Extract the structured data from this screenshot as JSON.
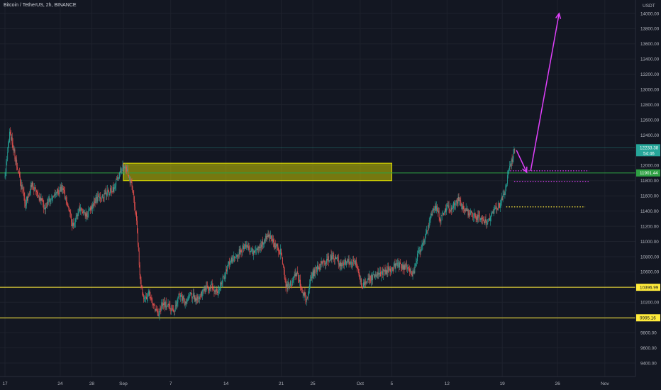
{
  "title": "Bitcoin / TetherUS, 2h, BINANCE",
  "chart_data": {
    "type": "candlestick",
    "symbol": "Bitcoin / TetherUS",
    "interval": "2h",
    "exchange": "BINANCE",
    "currency_label": "USDT",
    "ylim": [
      9270,
      14080
    ],
    "y_ticks": [
      14000,
      13800,
      13600,
      13400,
      13200,
      13000,
      12800,
      12600,
      12400,
      12200,
      12000,
      11800,
      11600,
      11400,
      11200,
      11000,
      10800,
      10600,
      10400,
      10200,
      10000,
      9800,
      9600,
      9400
    ],
    "y_tick_labels": [
      "14000.00",
      "13800.00",
      "13600.00",
      "13400.00",
      "13200.00",
      "13000.00",
      "12800.00",
      "12600.00",
      "12400.00",
      "12200.00",
      "12000.00",
      "11800.00",
      "11600.00",
      "11400.00",
      "11200.00",
      "11000.00",
      "10800.00",
      "10600.00",
      "10400.00",
      "10200.00",
      "10000.00",
      "9800.00",
      "9600.00",
      "9400.00"
    ],
    "x_ticks": [
      {
        "day": 0,
        "label": "17"
      },
      {
        "day": 7,
        "label": "24"
      },
      {
        "day": 11,
        "label": "28"
      },
      {
        "day": 15,
        "label": "Sep"
      },
      {
        "day": 21,
        "label": "7"
      },
      {
        "day": 28,
        "label": "14"
      },
      {
        "day": 35,
        "label": "21"
      },
      {
        "day": 39,
        "label": "25"
      },
      {
        "day": 45,
        "label": "Oct"
      },
      {
        "day": 49,
        "label": "5"
      },
      {
        "day": 56,
        "label": "12"
      },
      {
        "day": 63,
        "label": "19"
      },
      {
        "day": 70,
        "label": "26"
      },
      {
        "day": 76,
        "label": "Nov"
      }
    ],
    "price_path": [
      [
        0,
        11850
      ],
      [
        0.6,
        12450
      ],
      [
        1.2,
        12150
      ],
      [
        1.8,
        11850
      ],
      [
        2.6,
        11500
      ],
      [
        3.4,
        11750
      ],
      [
        4.2,
        11600
      ],
      [
        5.0,
        11450
      ],
      [
        6.0,
        11600
      ],
      [
        7.2,
        11700
      ],
      [
        7.8,
        11550
      ],
      [
        8.6,
        11200
      ],
      [
        9.4,
        11450
      ],
      [
        10.4,
        11350
      ],
      [
        11.4,
        11550
      ],
      [
        12.6,
        11620
      ],
      [
        13.8,
        11700
      ],
      [
        14.8,
        11980
      ],
      [
        15.4,
        11950
      ],
      [
        16.0,
        11750
      ],
      [
        16.6,
        11350
      ],
      [
        17.1,
        10550
      ],
      [
        17.6,
        10200
      ],
      [
        18.2,
        10350
      ],
      [
        18.8,
        10150
      ],
      [
        19.4,
        10050
      ],
      [
        20.0,
        10200
      ],
      [
        20.7,
        10150
      ],
      [
        21.3,
        10050
      ],
      [
        22.0,
        10300
      ],
      [
        22.8,
        10200
      ],
      [
        23.5,
        10300
      ],
      [
        24.3,
        10250
      ],
      [
        25.2,
        10350
      ],
      [
        26.0,
        10400
      ],
      [
        27.0,
        10350
      ],
      [
        27.8,
        10550
      ],
      [
        28.5,
        10750
      ],
      [
        29.5,
        10850
      ],
      [
        30.5,
        10950
      ],
      [
        31.5,
        10850
      ],
      [
        32.5,
        10950
      ],
      [
        33.4,
        11100
      ],
      [
        34.2,
        10950
      ],
      [
        35.0,
        10850
      ],
      [
        35.6,
        10400
      ],
      [
        36.3,
        10450
      ],
      [
        37.0,
        10600
      ],
      [
        37.6,
        10350
      ],
      [
        38.3,
        10250
      ],
      [
        38.8,
        10550
      ],
      [
        39.6,
        10650
      ],
      [
        40.6,
        10750
      ],
      [
        41.6,
        10800
      ],
      [
        42.6,
        10700
      ],
      [
        43.6,
        10750
      ],
      [
        44.6,
        10700
      ],
      [
        45.2,
        10400
      ],
      [
        46.0,
        10500
      ],
      [
        47.0,
        10550
      ],
      [
        48.0,
        10600
      ],
      [
        49.0,
        10650
      ],
      [
        50.0,
        10700
      ],
      [
        51.0,
        10650
      ],
      [
        51.7,
        10550
      ],
      [
        52.2,
        10800
      ],
      [
        52.8,
        10950
      ],
      [
        53.4,
        11100
      ],
      [
        54.0,
        11350
      ],
      [
        54.6,
        11450
      ],
      [
        55.2,
        11300
      ],
      [
        56.0,
        11450
      ],
      [
        56.6,
        11450
      ],
      [
        57.4,
        11550
      ],
      [
        58.2,
        11400
      ],
      [
        59.0,
        11380
      ],
      [
        60.0,
        11300
      ],
      [
        61.0,
        11250
      ],
      [
        62.0,
        11400
      ],
      [
        62.8,
        11500
      ],
      [
        63.4,
        11700
      ],
      [
        63.9,
        11950
      ],
      [
        64.3,
        12100
      ],
      [
        64.6,
        12233
      ]
    ],
    "current_price": 12233.38,
    "current_price_label": "12233.38",
    "current_countdown": "54:46",
    "levels": [
      {
        "value": 11901.44,
        "label": "11901.44",
        "color": "#2ea043"
      },
      {
        "value": 10396.99,
        "label": "10396.99",
        "color": "#ffeb3b"
      },
      {
        "value": 9995.16,
        "label": "9995.16",
        "color": "#ffeb3b"
      }
    ],
    "annotations": {
      "resistance_zone": {
        "day_from": 15.0,
        "day_to": 49.0,
        "price_low": 11800,
        "price_high": 12030,
        "color": "#c8c800"
      },
      "dotted_lines": [
        {
          "day_from": 64.0,
          "day_to": 74.0,
          "price": 11930,
          "color": "#e040fb"
        },
        {
          "day_from": 64.5,
          "day_to": 74.0,
          "price": 11790,
          "color": "#e040fb"
        },
        {
          "day_from": 63.5,
          "day_to": 73.5,
          "price": 11455,
          "color": "#ffeb3b"
        }
      ],
      "arrows": [
        {
          "from_day": 64.8,
          "from_price": 12200,
          "to_day": 66.1,
          "to_price": 11910,
          "color": "#e040fb"
        },
        {
          "from_day": 66.6,
          "from_price": 11930,
          "to_day": 70.2,
          "to_price": 14000,
          "color": "#e040fb"
        }
      ]
    }
  }
}
